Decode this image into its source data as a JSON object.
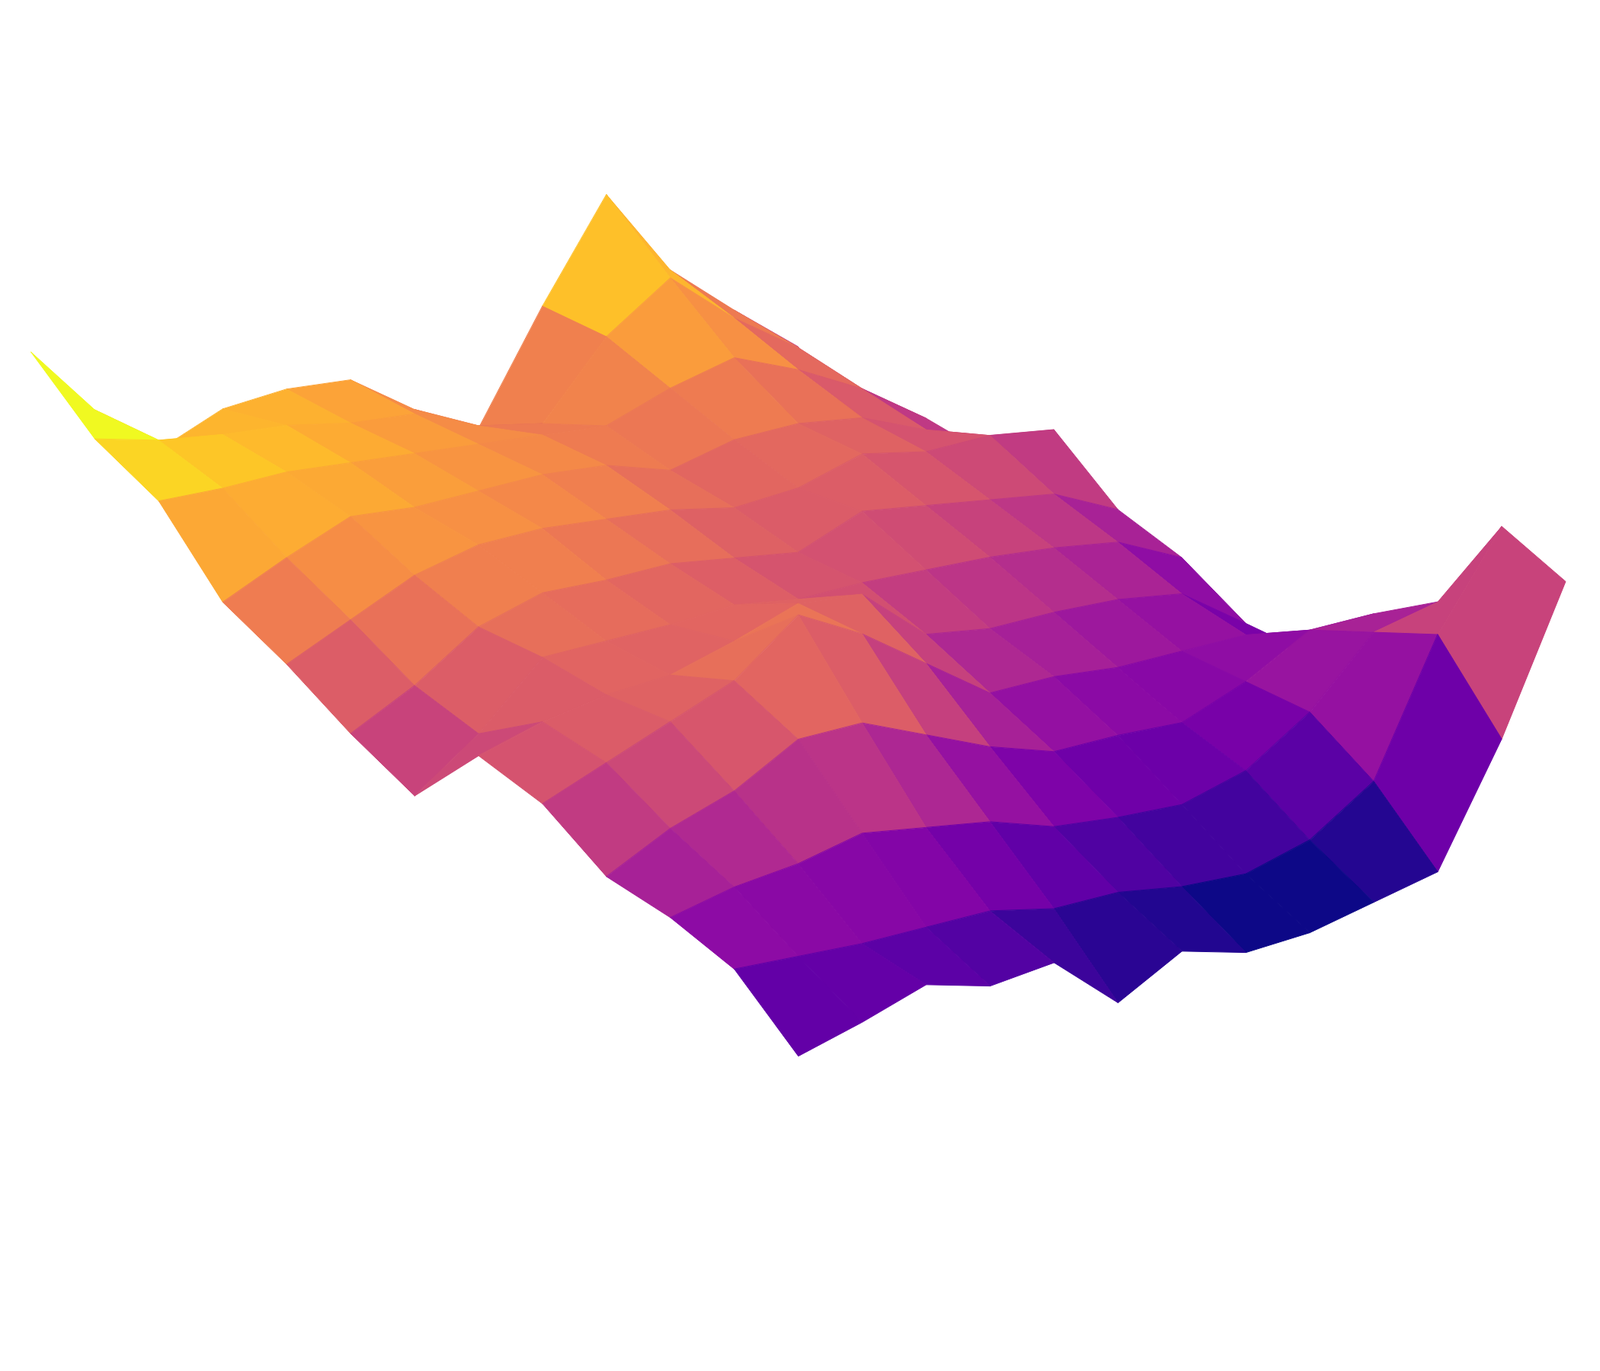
{
  "chart_data": {
    "type": "surface",
    "color": "plasma",
    "tick_labels": false,
    "z": [
      [
        0.42,
        0.25,
        0.35,
        0.31,
        0.45,
        0.29,
        0.22,
        0.1,
        0.08,
        0.26,
        0.36,
        0.64,
        0.55
      ],
      [
        0.59,
        0.55,
        0.5,
        0.45,
        0.5,
        0.4,
        0.33,
        0.25,
        0.2,
        0.28,
        0.34,
        0.4,
        0.17
      ],
      [
        0.77,
        0.7,
        0.62,
        0.55,
        0.52,
        0.45,
        0.38,
        0.3,
        0.22,
        0.2,
        0.18,
        0.05,
        -0.14
      ],
      [
        1.05,
        0.88,
        0.72,
        0.6,
        0.58,
        0.5,
        0.42,
        0.33,
        0.24,
        0.15,
        0.08,
        -0.05,
        -0.16
      ],
      [
        0.8,
        0.78,
        0.7,
        0.62,
        0.55,
        0.55,
        0.45,
        0.35,
        0.28,
        0.18,
        0.05,
        -0.08,
        -0.18
      ],
      [
        0.52,
        0.6,
        0.66,
        0.6,
        0.56,
        0.5,
        0.48,
        0.4,
        0.3,
        0.2,
        0.08,
        -0.05,
        -0.17
      ],
      [
        0.64,
        0.66,
        0.7,
        0.68,
        0.62,
        0.55,
        0.5,
        0.58,
        0.45,
        0.28,
        0.12,
        0.0,
        -0.1
      ],
      [
        0.79,
        0.76,
        0.74,
        0.72,
        0.66,
        0.6,
        0.55,
        0.62,
        0.6,
        0.38,
        0.2,
        0.02,
        -0.18
      ],
      [
        0.83,
        0.8,
        0.78,
        0.74,
        0.7,
        0.62,
        0.56,
        0.58,
        0.72,
        0.48,
        0.25,
        0.08,
        0.0
      ],
      [
        0.84,
        0.86,
        0.82,
        0.76,
        0.72,
        0.65,
        0.58,
        0.55,
        0.6,
        0.5,
        0.3,
        0.1,
        0.0
      ],
      [
        0.79,
        0.9,
        0.86,
        0.8,
        0.7,
        0.62,
        0.6,
        0.56,
        0.55,
        0.42,
        0.28,
        0.12,
        0.07
      ],
      [
        0.97,
        0.95,
        0.88,
        0.75,
        0.64,
        0.52,
        0.45,
        0.55,
        0.5,
        0.38,
        0.28,
        0.15,
        0.03
      ],
      [
        1.2,
        1.02,
        0.91,
        0.69,
        0.58,
        0.45,
        0.34,
        0.52,
        0.45,
        0.31,
        0.26,
        0.18,
        0.0
      ]
    ]
  }
}
